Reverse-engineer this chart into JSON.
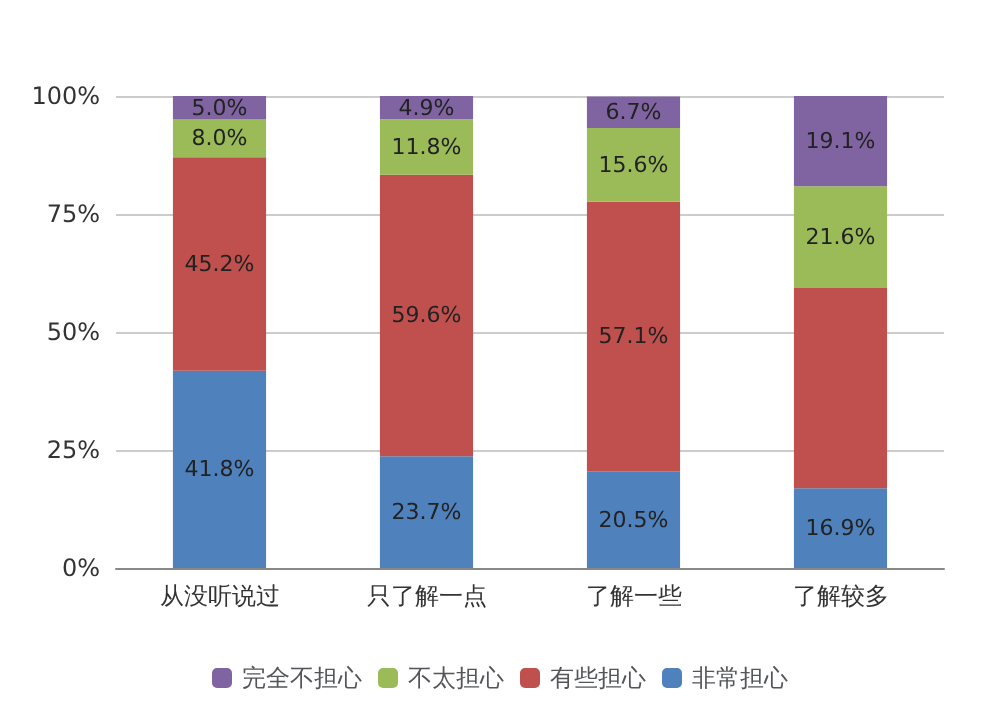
{
  "chart_data": {
    "type": "bar",
    "stacked": true,
    "categories": [
      "从没听说过",
      "只了解一点",
      "了解一些",
      "了解较多"
    ],
    "series": [
      {
        "name": "非常担心",
        "color": "#4f81bd",
        "values": [
          41.8,
          23.7,
          20.5,
          16.9
        ],
        "value_labels": [
          "41.8%",
          "23.7%",
          "20.5%",
          "16.9%"
        ]
      },
      {
        "name": "有些担心",
        "color": "#c0504d",
        "values": [
          45.2,
          59.6,
          57.1,
          42.4
        ],
        "value_labels": [
          "45.2%",
          "59.6%",
          "57.1%",
          null
        ]
      },
      {
        "name": "不太担心",
        "color": "#9bbb59",
        "values": [
          8.0,
          11.8,
          15.6,
          21.6
        ],
        "value_labels": [
          "8.0%",
          "11.8%",
          "15.6%",
          "21.6%"
        ]
      },
      {
        "name": "完全不担心",
        "color": "#8064a2",
        "values": [
          5.0,
          4.9,
          6.7,
          19.1
        ],
        "value_labels": [
          "5.0%",
          "4.9%",
          "6.7%",
          "19.1%"
        ]
      }
    ],
    "ylim": [
      0,
      100
    ],
    "yticks": [
      {
        "value": 0,
        "label": "0%"
      },
      {
        "value": 25,
        "label": "25%"
      },
      {
        "value": 50,
        "label": "50%"
      },
      {
        "value": 75,
        "label": "75%"
      },
      {
        "value": 100,
        "label": "100%"
      }
    ],
    "grid": "y",
    "legend": "bottom"
  }
}
